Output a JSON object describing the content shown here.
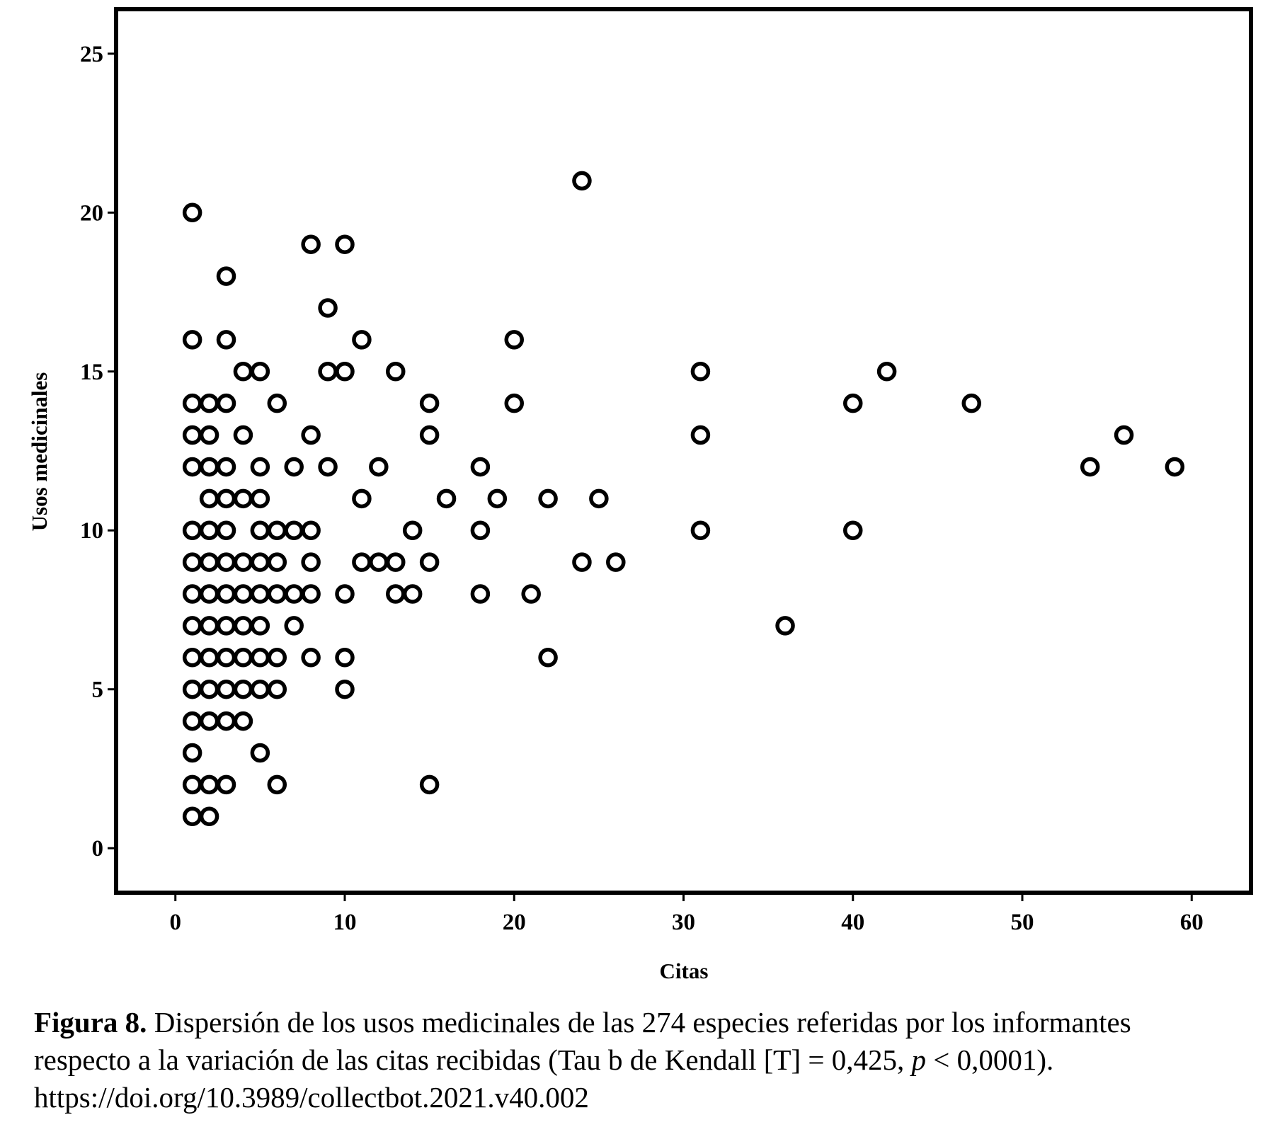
{
  "chart_data": {
    "type": "scatter",
    "title": "",
    "xlabel": "Citas",
    "ylabel": "Usos medicinales",
    "xlim": [
      -3.5,
      63.5
    ],
    "ylim": [
      -1.4,
      26.4
    ],
    "xticks": [
      0,
      10,
      20,
      30,
      40,
      50,
      60
    ],
    "yticks": [
      0,
      5,
      10,
      15,
      20,
      25
    ],
    "grid": false,
    "marker": "open-circle",
    "marker_color": "#000000",
    "points": [
      {
        "x": 1,
        "y": 1
      },
      {
        "x": 2,
        "y": 1
      },
      {
        "x": 1,
        "y": 2
      },
      {
        "x": 2,
        "y": 2
      },
      {
        "x": 3,
        "y": 2
      },
      {
        "x": 6,
        "y": 2
      },
      {
        "x": 15,
        "y": 2
      },
      {
        "x": 1,
        "y": 3
      },
      {
        "x": 5,
        "y": 3
      },
      {
        "x": 1,
        "y": 4
      },
      {
        "x": 2,
        "y": 4
      },
      {
        "x": 3,
        "y": 4
      },
      {
        "x": 4,
        "y": 4
      },
      {
        "x": 1,
        "y": 5
      },
      {
        "x": 2,
        "y": 5
      },
      {
        "x": 3,
        "y": 5
      },
      {
        "x": 4,
        "y": 5
      },
      {
        "x": 5,
        "y": 5
      },
      {
        "x": 6,
        "y": 5
      },
      {
        "x": 10,
        "y": 5
      },
      {
        "x": 1,
        "y": 6
      },
      {
        "x": 2,
        "y": 6
      },
      {
        "x": 3,
        "y": 6
      },
      {
        "x": 4,
        "y": 6
      },
      {
        "x": 5,
        "y": 6
      },
      {
        "x": 6,
        "y": 6
      },
      {
        "x": 8,
        "y": 6
      },
      {
        "x": 10,
        "y": 6
      },
      {
        "x": 22,
        "y": 6
      },
      {
        "x": 1,
        "y": 7
      },
      {
        "x": 2,
        "y": 7
      },
      {
        "x": 3,
        "y": 7
      },
      {
        "x": 4,
        "y": 7
      },
      {
        "x": 5,
        "y": 7
      },
      {
        "x": 7,
        "y": 7
      },
      {
        "x": 36,
        "y": 7
      },
      {
        "x": 1,
        "y": 8
      },
      {
        "x": 2,
        "y": 8
      },
      {
        "x": 3,
        "y": 8
      },
      {
        "x": 4,
        "y": 8
      },
      {
        "x": 5,
        "y": 8
      },
      {
        "x": 6,
        "y": 8
      },
      {
        "x": 7,
        "y": 8
      },
      {
        "x": 8,
        "y": 8
      },
      {
        "x": 10,
        "y": 8
      },
      {
        "x": 13,
        "y": 8
      },
      {
        "x": 14,
        "y": 8
      },
      {
        "x": 18,
        "y": 8
      },
      {
        "x": 21,
        "y": 8
      },
      {
        "x": 1,
        "y": 9
      },
      {
        "x": 2,
        "y": 9
      },
      {
        "x": 3,
        "y": 9
      },
      {
        "x": 4,
        "y": 9
      },
      {
        "x": 5,
        "y": 9
      },
      {
        "x": 6,
        "y": 9
      },
      {
        "x": 8,
        "y": 9
      },
      {
        "x": 11,
        "y": 9
      },
      {
        "x": 12,
        "y": 9
      },
      {
        "x": 13,
        "y": 9
      },
      {
        "x": 15,
        "y": 9
      },
      {
        "x": 24,
        "y": 9
      },
      {
        "x": 26,
        "y": 9
      },
      {
        "x": 1,
        "y": 10
      },
      {
        "x": 2,
        "y": 10
      },
      {
        "x": 3,
        "y": 10
      },
      {
        "x": 5,
        "y": 10
      },
      {
        "x": 6,
        "y": 10
      },
      {
        "x": 7,
        "y": 10
      },
      {
        "x": 8,
        "y": 10
      },
      {
        "x": 14,
        "y": 10
      },
      {
        "x": 18,
        "y": 10
      },
      {
        "x": 31,
        "y": 10
      },
      {
        "x": 40,
        "y": 10
      },
      {
        "x": 2,
        "y": 11
      },
      {
        "x": 3,
        "y": 11
      },
      {
        "x": 4,
        "y": 11
      },
      {
        "x": 5,
        "y": 11
      },
      {
        "x": 11,
        "y": 11
      },
      {
        "x": 16,
        "y": 11
      },
      {
        "x": 19,
        "y": 11
      },
      {
        "x": 22,
        "y": 11
      },
      {
        "x": 25,
        "y": 11
      },
      {
        "x": 1,
        "y": 12
      },
      {
        "x": 2,
        "y": 12
      },
      {
        "x": 3,
        "y": 12
      },
      {
        "x": 5,
        "y": 12
      },
      {
        "x": 7,
        "y": 12
      },
      {
        "x": 9,
        "y": 12
      },
      {
        "x": 12,
        "y": 12
      },
      {
        "x": 18,
        "y": 12
      },
      {
        "x": 54,
        "y": 12
      },
      {
        "x": 59,
        "y": 12
      },
      {
        "x": 1,
        "y": 13
      },
      {
        "x": 2,
        "y": 13
      },
      {
        "x": 4,
        "y": 13
      },
      {
        "x": 8,
        "y": 13
      },
      {
        "x": 15,
        "y": 13
      },
      {
        "x": 31,
        "y": 13
      },
      {
        "x": 56,
        "y": 13
      },
      {
        "x": 1,
        "y": 14
      },
      {
        "x": 2,
        "y": 14
      },
      {
        "x": 3,
        "y": 14
      },
      {
        "x": 6,
        "y": 14
      },
      {
        "x": 15,
        "y": 14
      },
      {
        "x": 20,
        "y": 14
      },
      {
        "x": 40,
        "y": 14
      },
      {
        "x": 47,
        "y": 14
      },
      {
        "x": 4,
        "y": 15
      },
      {
        "x": 5,
        "y": 15
      },
      {
        "x": 9,
        "y": 15
      },
      {
        "x": 10,
        "y": 15
      },
      {
        "x": 13,
        "y": 15
      },
      {
        "x": 31,
        "y": 15
      },
      {
        "x": 42,
        "y": 15
      },
      {
        "x": 1,
        "y": 16
      },
      {
        "x": 3,
        "y": 16
      },
      {
        "x": 11,
        "y": 16
      },
      {
        "x": 20,
        "y": 16
      },
      {
        "x": 9,
        "y": 17
      },
      {
        "x": 3,
        "y": 18
      },
      {
        "x": 8,
        "y": 19
      },
      {
        "x": 10,
        "y": 19
      },
      {
        "x": 1,
        "y": 20
      },
      {
        "x": 24,
        "y": 21
      }
    ]
  },
  "caption": {
    "label": "Figura 8.",
    "line1": " Dispersión de los usos medicinales de las 274 especies referidas por los informantes",
    "line2_pre": "respecto a la variación de las citas recibidas (Tau b de Kendall [Ƭ] = 0,425, ",
    "line2_p": "p",
    "line2_post": " < 0,0001).",
    "line3": "https://doi.org/10.3989/collectbot.2021.v40.002"
  }
}
